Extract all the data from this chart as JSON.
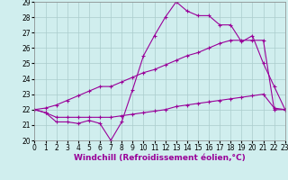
{
  "background_color": "#d0eeee",
  "grid_color": "#aacccc",
  "line_color": "#990099",
  "x_hours": [
    0,
    1,
    2,
    3,
    4,
    5,
    6,
    7,
    8,
    9,
    10,
    11,
    12,
    13,
    14,
    15,
    16,
    17,
    18,
    19,
    20,
    21,
    22,
    23
  ],
  "line1_y": [
    22.0,
    21.8,
    21.2,
    21.2,
    21.1,
    21.3,
    21.1,
    20.0,
    21.2,
    23.3,
    25.5,
    26.8,
    28.0,
    29.0,
    28.4,
    28.1,
    28.1,
    27.5,
    27.5,
    26.4,
    26.8,
    25.0,
    23.5,
    22.0
  ],
  "line2_y": [
    22.0,
    21.8,
    21.5,
    21.5,
    21.5,
    21.5,
    21.5,
    21.5,
    21.6,
    21.7,
    21.8,
    21.9,
    22.0,
    22.2,
    22.3,
    22.4,
    22.5,
    22.6,
    22.7,
    22.8,
    22.9,
    23.0,
    22.1,
    22.0
  ],
  "line3_y": [
    22.0,
    22.1,
    22.3,
    22.6,
    22.9,
    23.2,
    23.5,
    23.5,
    23.8,
    24.1,
    24.4,
    24.6,
    24.9,
    25.2,
    25.5,
    25.7,
    26.0,
    26.3,
    26.5,
    26.5,
    26.5,
    26.5,
    22.0,
    22.0
  ],
  "ylim": [
    20,
    29
  ],
  "xlim": [
    0,
    23
  ],
  "yticks": [
    20,
    21,
    22,
    23,
    24,
    25,
    26,
    27,
    28,
    29
  ],
  "xticks": [
    0,
    1,
    2,
    3,
    4,
    5,
    6,
    7,
    8,
    9,
    10,
    11,
    12,
    13,
    14,
    15,
    16,
    17,
    18,
    19,
    20,
    21,
    22,
    23
  ],
  "xlabel": "Windchill (Refroidissement éolien,°C)",
  "tick_fontsize": 5.5,
  "label_fontsize": 6.5
}
